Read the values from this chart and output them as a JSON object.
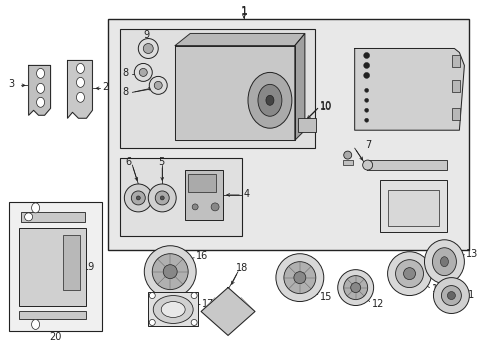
{
  "bg_color": "#ffffff",
  "outer_bg": "#e8e8e8",
  "line_color": "#222222",
  "figsize": [
    4.89,
    3.6
  ],
  "dpi": 100
}
